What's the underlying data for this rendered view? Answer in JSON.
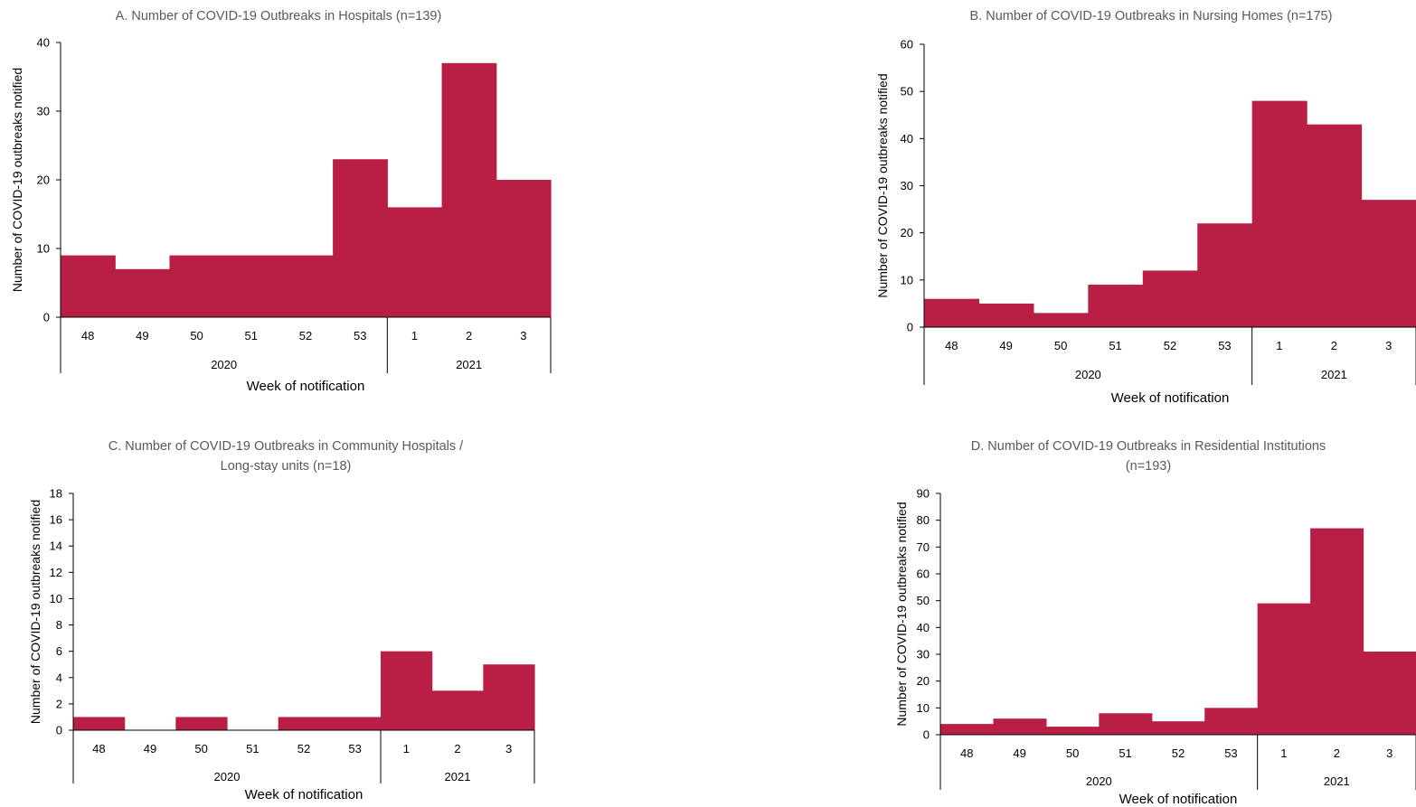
{
  "colors": {
    "bar": "#B91F45",
    "axis": "#000000",
    "title": "#595959"
  },
  "chart_data": [
    {
      "id": "A",
      "type": "bar",
      "title_lines": [
        "A. Number of COVID-19 Outbreaks in Hospitals (n=139)"
      ],
      "ylabel": "Number of COVID-19 outbreaks notified",
      "xlabel": "Week of notification",
      "categories": [
        "48",
        "49",
        "50",
        "51",
        "52",
        "53",
        "1",
        "2",
        "3"
      ],
      "groups": [
        {
          "label": "2020",
          "count": 6
        },
        {
          "label": "2021",
          "count": 3
        }
      ],
      "values": [
        9,
        7,
        9,
        9,
        9,
        23,
        16,
        37,
        20
      ],
      "ylim": [
        0,
        40
      ],
      "yticks": [
        "0",
        "10",
        "20",
        "30",
        "40"
      ]
    },
    {
      "id": "B",
      "type": "bar",
      "title_lines": [
        "B. Number of COVID-19 Outbreaks in Nursing Homes (n=175)"
      ],
      "ylabel": "Number of COVID-19 outbreaks notified",
      "xlabel": "Week of notification",
      "categories": [
        "48",
        "49",
        "50",
        "51",
        "52",
        "53",
        "1",
        "2",
        "3"
      ],
      "groups": [
        {
          "label": "2020",
          "count": 6
        },
        {
          "label": "2021",
          "count": 3
        }
      ],
      "values": [
        6,
        5,
        3,
        9,
        12,
        22,
        48,
        43,
        27
      ],
      "ylim": [
        0,
        60
      ],
      "yticks": [
        "0",
        "10",
        "20",
        "30",
        "40",
        "50",
        "60"
      ]
    },
    {
      "id": "C",
      "type": "bar",
      "title_lines": [
        "C. Number of COVID-19 Outbreaks in Community Hospitals /",
        "Long-stay units (n=18)"
      ],
      "ylabel": "Number of COVID-19 outbreaks notified",
      "xlabel": "Week of notification",
      "categories": [
        "48",
        "49",
        "50",
        "51",
        "52",
        "53",
        "1",
        "2",
        "3"
      ],
      "groups": [
        {
          "label": "2020",
          "count": 6
        },
        {
          "label": "2021",
          "count": 3
        }
      ],
      "values": [
        1,
        0,
        1,
        0,
        1,
        1,
        6,
        3,
        5
      ],
      "ylim": [
        0,
        18
      ],
      "yticks": [
        "0",
        "2",
        "4",
        "6",
        "8",
        "10",
        "12",
        "14",
        "16",
        "18"
      ]
    },
    {
      "id": "D",
      "type": "bar",
      "title_lines": [
        "D. Number of COVID-19 Outbreaks in Residential Institutions",
        "(n=193)"
      ],
      "ylabel": "Number of COVID-19 outbreaks notified",
      "xlabel": "Week of notification",
      "categories": [
        "48",
        "49",
        "50",
        "51",
        "52",
        "53",
        "1",
        "2",
        "3"
      ],
      "groups": [
        {
          "label": "2020",
          "count": 6
        },
        {
          "label": "2021",
          "count": 3
        }
      ],
      "values": [
        4,
        6,
        3,
        8,
        5,
        10,
        49,
        77,
        31
      ],
      "ylim": [
        0,
        90
      ],
      "yticks": [
        "0",
        "10",
        "20",
        "30",
        "40",
        "50",
        "60",
        "70",
        "80",
        "90"
      ]
    }
  ]
}
